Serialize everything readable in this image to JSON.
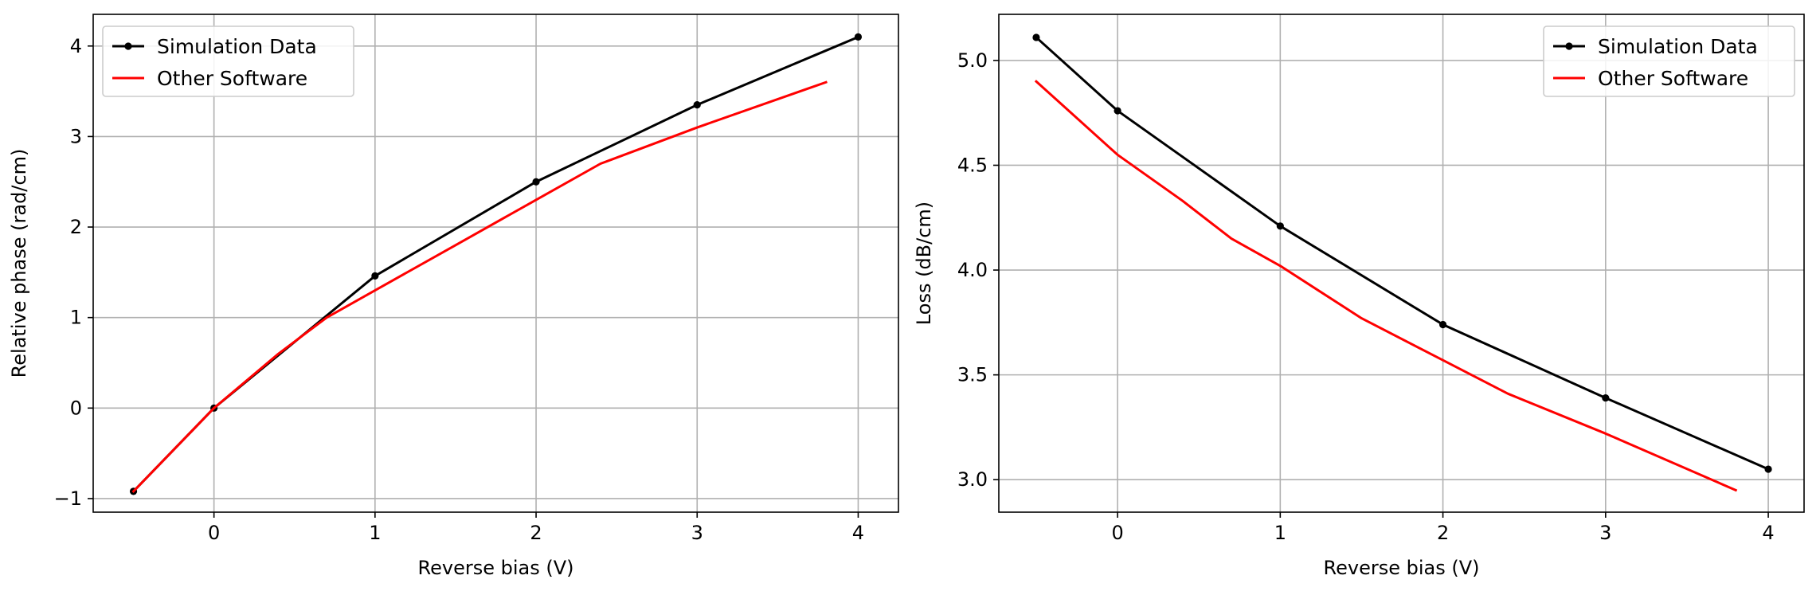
{
  "chart_data": [
    {
      "type": "line",
      "title": "",
      "xlabel": "Reverse bias (V)",
      "ylabel": "Relative phase (rad/cm)",
      "xlim": [
        -0.75,
        4.25
      ],
      "ylim": [
        -1.15,
        4.35
      ],
      "xticks": [
        0,
        1,
        2,
        3,
        4
      ],
      "xtick_labels": [
        "0",
        "1",
        "2",
        "3",
        "4"
      ],
      "yticks": [
        -1,
        0,
        1,
        2,
        3,
        4
      ],
      "ytick_labels": [
        "−1",
        "0",
        "1",
        "2",
        "3",
        "4"
      ],
      "grid": true,
      "legend_position": "upper left",
      "series": [
        {
          "name": "Simulation Data",
          "color": "#000000",
          "marker": "circle",
          "x": [
            -0.5,
            0,
            1,
            2,
            3,
            4
          ],
          "y": [
            -0.92,
            0,
            1.46,
            2.5,
            3.35,
            4.1
          ]
        },
        {
          "name": "Other Software",
          "color": "#ff0000",
          "marker": "none",
          "x": [
            -0.5,
            0,
            0.4,
            0.7,
            1,
            1.5,
            2,
            2.4,
            3,
            3.8
          ],
          "y": [
            -0.92,
            0,
            0.6,
            1.0,
            1.3,
            1.8,
            2.3,
            2.7,
            3.1,
            3.6
          ]
        }
      ]
    },
    {
      "type": "line",
      "title": "",
      "xlabel": "Reverse bias (V)",
      "ylabel": "Loss (dB/cm)",
      "xlim": [
        -0.73,
        4.22
      ],
      "ylim": [
        2.845,
        5.22
      ],
      "xticks": [
        0,
        1,
        2,
        3,
        4
      ],
      "xtick_labels": [
        "0",
        "1",
        "2",
        "3",
        "4"
      ],
      "yticks": [
        3.0,
        3.5,
        4.0,
        4.5,
        5.0
      ],
      "ytick_labels": [
        "3.0",
        "3.5",
        "4.0",
        "4.5",
        "5.0"
      ],
      "grid": true,
      "legend_position": "upper right",
      "series": [
        {
          "name": "Simulation Data",
          "color": "#000000",
          "marker": "circle",
          "x": [
            -0.5,
            0,
            1,
            2,
            3,
            4
          ],
          "y": [
            5.11,
            4.76,
            4.21,
            3.74,
            3.39,
            3.05
          ]
        },
        {
          "name": "Other Software",
          "color": "#ff0000",
          "marker": "none",
          "x": [
            -0.5,
            0,
            0.4,
            0.7,
            1,
            1.5,
            2,
            2.4,
            3,
            3.8
          ],
          "y": [
            4.9,
            4.55,
            4.33,
            4.15,
            4.02,
            3.77,
            3.57,
            3.41,
            3.22,
            2.95
          ]
        }
      ]
    }
  ]
}
